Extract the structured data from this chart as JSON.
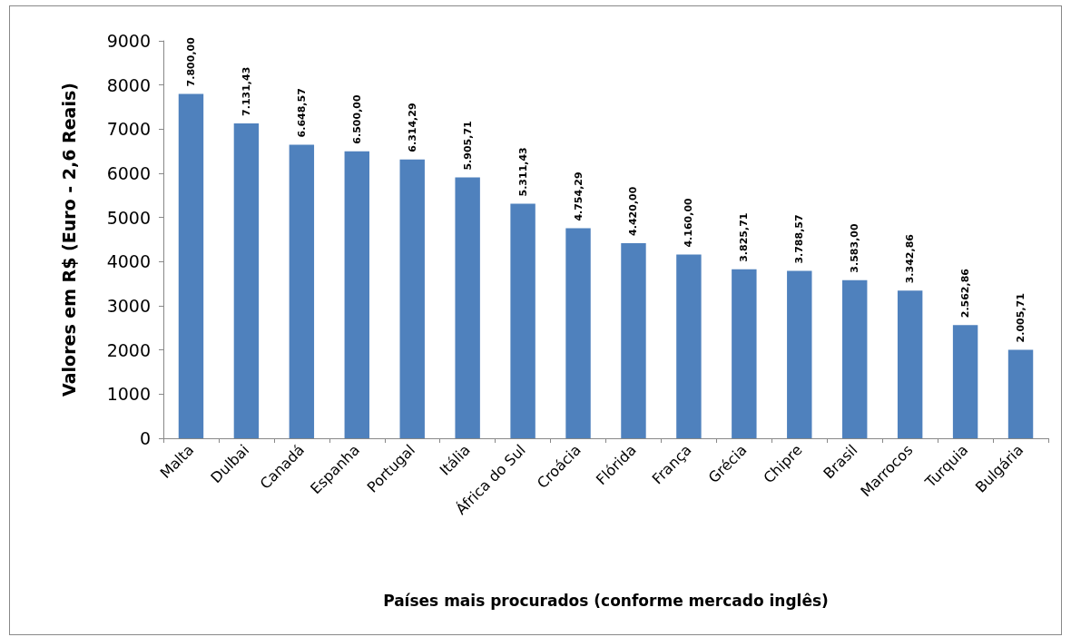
{
  "chart_data": {
    "type": "bar",
    "xlabel": "Países mais procurados (conforme mercado inglês)",
    "ylabel": "Valores em R$ (Euro - 2,6 Reais)",
    "categories": [
      "Malta",
      "Dulbai",
      "Canadá",
      "Espanha",
      "Portugal",
      "Itália",
      "África do Sul",
      "Croácia",
      "Flórida",
      "França",
      "Grécia",
      "Chipre",
      "Brasil",
      "Marrocos",
      "Turquia",
      "Bulgária"
    ],
    "values": [
      7800,
      7131.43,
      6648.57,
      6500,
      6314.29,
      5905.71,
      5311.43,
      4754.29,
      4420,
      4160,
      3825.71,
      3788.57,
      3583,
      3342.86,
      2562.86,
      2005.71
    ],
    "value_labels": [
      "7.800,00",
      "7.131,43",
      "6.648,57",
      "6.500,00",
      "6.314,29",
      "5.905,71",
      "5.311,43",
      "4.754,29",
      "4.420,00",
      "4.160,00",
      "3.825,71",
      "3.788,57",
      "3.583,00",
      "3.342,86",
      "2.562,86",
      "2.005,71"
    ],
    "color": "#4f81bd",
    "ylim": [
      0,
      9000
    ],
    "yticks": [
      0,
      1000,
      2000,
      3000,
      4000,
      5000,
      6000,
      7000,
      8000,
      9000
    ],
    "grid": false
  }
}
